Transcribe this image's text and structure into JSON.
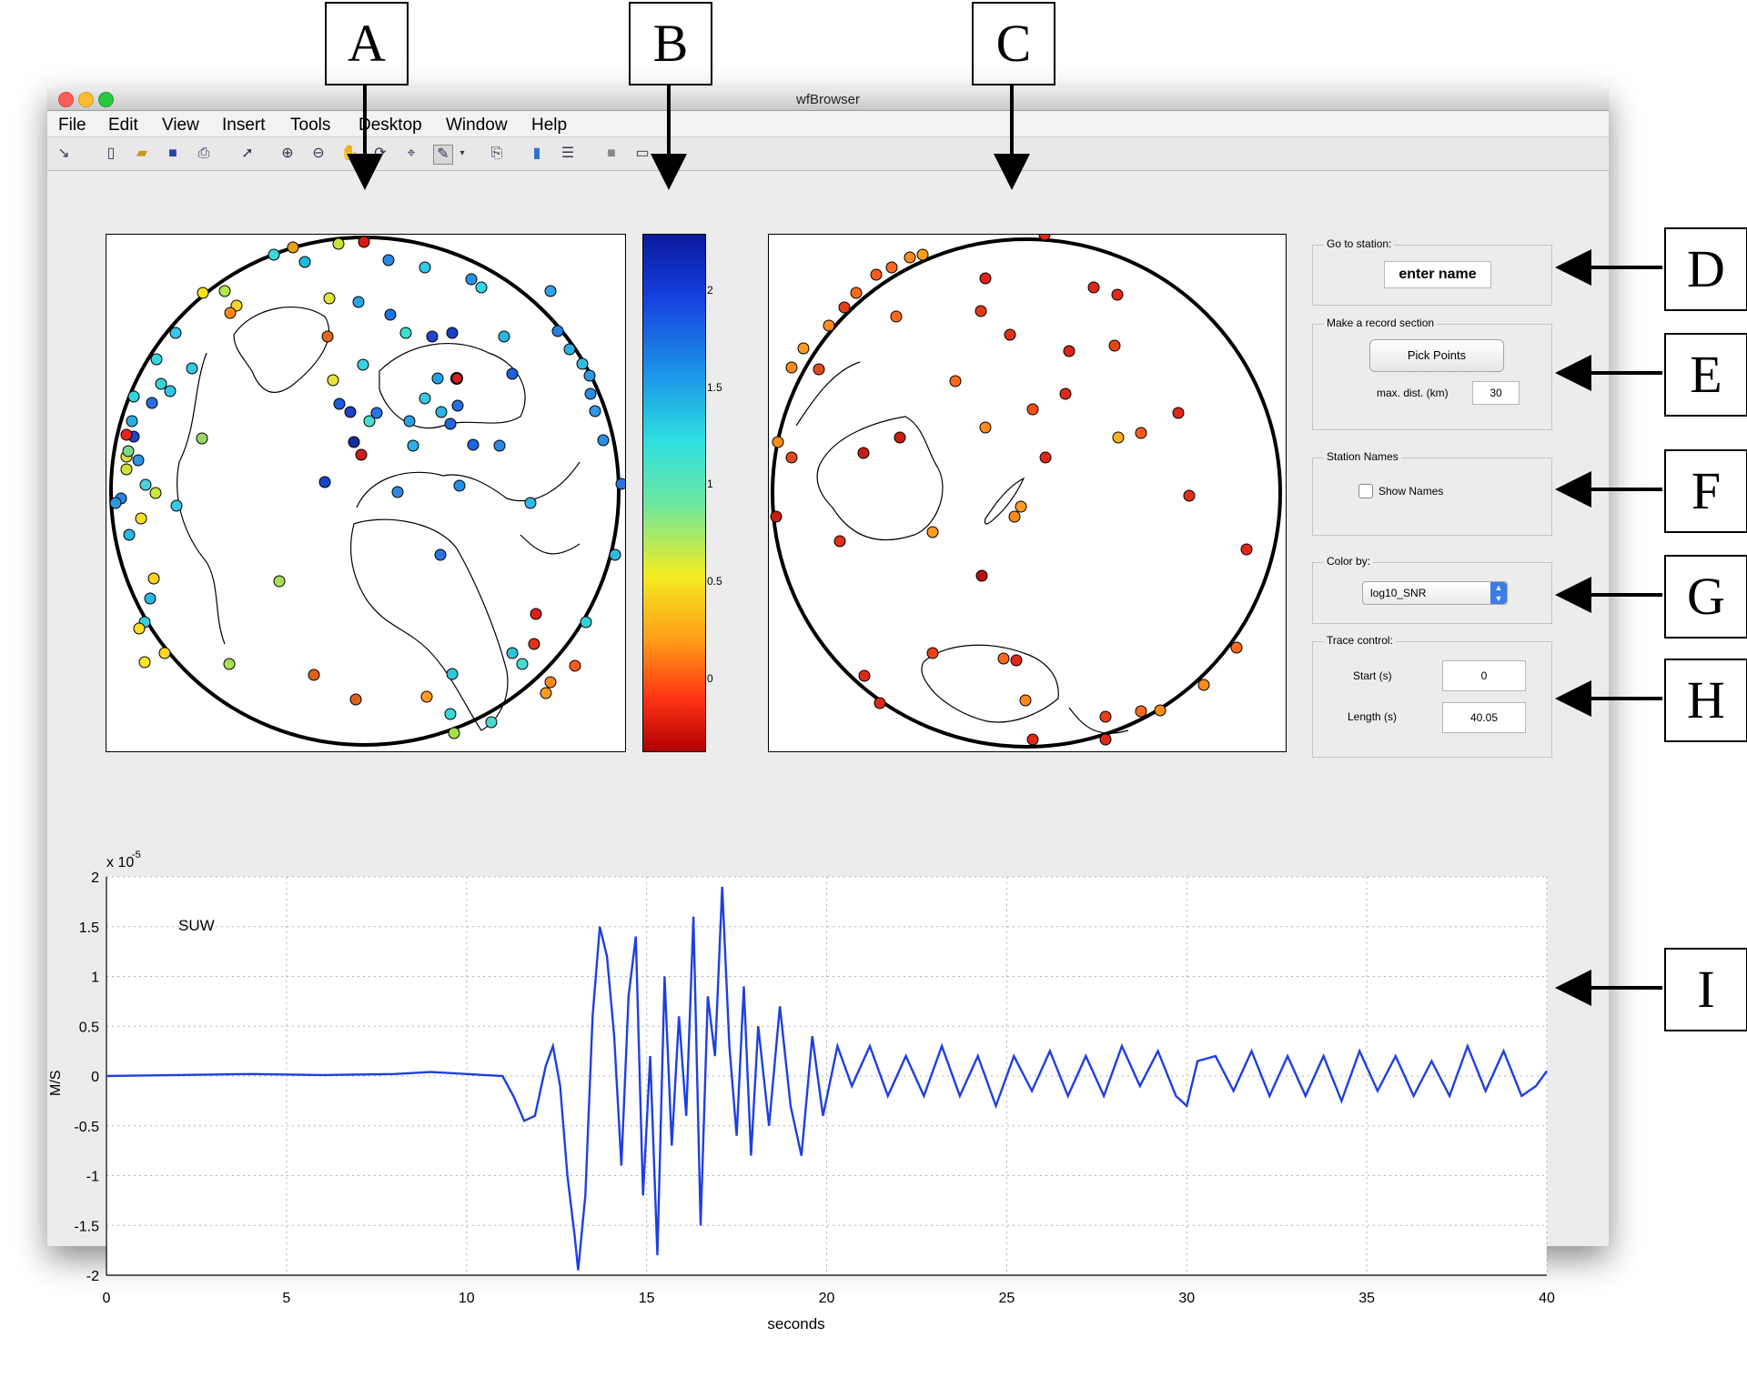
{
  "window": {
    "title": "wfBrowser"
  },
  "menu": [
    "File",
    "Edit",
    "View",
    "Insert",
    "Tools",
    "Desktop",
    "Window",
    "Help"
  ],
  "toolbar_icons": [
    "arrow-icon",
    "new-file-icon",
    "open-folder-icon",
    "save-icon",
    "print-icon",
    "pointer-icon",
    "zoom-in-icon",
    "zoom-out-icon",
    "pan-icon",
    "rotate-icon",
    "data-cursor-icon",
    "brush-icon",
    "link-icon",
    "colorbar-icon",
    "legend-icon",
    "hide-plot-icon",
    "show-plot-icon"
  ],
  "callouts": [
    "A",
    "B",
    "C",
    "D",
    "E",
    "F",
    "G",
    "H",
    "I"
  ],
  "colorbar": {
    "ticks": [
      "2",
      "1.5",
      "1",
      "0.5",
      "0"
    ]
  },
  "controls": {
    "goto": {
      "title": "Go to station:",
      "field": "enter name"
    },
    "record": {
      "title": "Make a record section",
      "button": "Pick Points",
      "dist_label": "max. dist. (km)",
      "dist_value": "30"
    },
    "names": {
      "title": "Station Names",
      "checkbox": "Show Names"
    },
    "color": {
      "title": "Color by:",
      "value": "log10_SNR"
    },
    "trace": {
      "title": "Trace control:",
      "start_label": "Start (s)",
      "start_value": "0",
      "length_label": "Length (s)",
      "length_value": "40.05"
    }
  },
  "chart_data": {
    "type": "line",
    "station": "SUW",
    "xlabel": "seconds",
    "ylabel": "M/S",
    "exponent": "x 10",
    "exponent_power": "-5",
    "xlim": [
      0,
      40
    ],
    "ylim": [
      -2,
      2
    ],
    "xticks": [
      "0",
      "5",
      "10",
      "15",
      "20",
      "25",
      "30",
      "35",
      "40"
    ],
    "yticks": [
      "2",
      "1.5",
      "1",
      "0.5",
      "0",
      "-0.5",
      "-1",
      "-1.5",
      "-2"
    ],
    "grid": true,
    "series": [
      {
        "color": "#1f3fe0",
        "x": [
          0,
          2,
          4,
          6,
          8,
          9,
          10,
          11,
          11.3,
          11.6,
          11.9,
          12.2,
          12.4,
          12.6,
          12.8,
          13.0,
          13.1,
          13.3,
          13.5,
          13.7,
          13.9,
          14.1,
          14.3,
          14.5,
          14.7,
          14.9,
          15.1,
          15.3,
          15.5,
          15.7,
          15.9,
          16.1,
          16.3,
          16.5,
          16.7,
          16.9,
          17.1,
          17.3,
          17.5,
          17.7,
          17.9,
          18.1,
          18.4,
          18.7,
          19.0,
          19.3,
          19.6,
          19.9,
          20.3,
          20.7,
          21.2,
          21.7,
          22.2,
          22.7,
          23.2,
          23.7,
          24.2,
          24.7,
          25.2,
          25.7,
          26.2,
          26.7,
          27.2,
          27.7,
          28.2,
          28.7,
          29.2,
          29.7,
          30.0,
          30.3,
          30.8,
          31.3,
          31.8,
          32.3,
          32.8,
          33.3,
          33.8,
          34.3,
          34.8,
          35.3,
          35.8,
          36.3,
          36.8,
          37.3,
          37.8,
          38.3,
          38.8,
          39.3,
          39.7,
          40
        ],
        "y": [
          0,
          0.01,
          0.02,
          0.01,
          0.02,
          0.04,
          0.02,
          0,
          -0.2,
          -0.45,
          -0.4,
          0.1,
          0.3,
          -0.1,
          -1.0,
          -1.6,
          -1.95,
          -1.2,
          0.6,
          1.5,
          1.2,
          0.4,
          -0.9,
          0.8,
          1.4,
          -1.2,
          0.2,
          -1.8,
          1.0,
          -0.7,
          0.6,
          -0.4,
          1.6,
          -1.5,
          0.8,
          0.2,
          1.9,
          0.3,
          -0.6,
          0.9,
          -0.8,
          0.5,
          -0.5,
          0.7,
          -0.3,
          -0.8,
          0.4,
          -0.4,
          0.3,
          -0.1,
          0.3,
          -0.2,
          0.2,
          -0.2,
          0.3,
          -0.2,
          0.2,
          -0.3,
          0.2,
          -0.15,
          0.25,
          -0.2,
          0.2,
          -0.2,
          0.3,
          -0.1,
          0.25,
          -0.2,
          -0.3,
          0.15,
          0.2,
          -0.15,
          0.25,
          -0.2,
          0.2,
          -0.2,
          0.2,
          -0.25,
          0.25,
          -0.15,
          0.2,
          -0.2,
          0.15,
          -0.2,
          0.3,
          -0.15,
          0.25,
          -0.2,
          -0.1,
          0.05
        ]
      }
    ]
  }
}
